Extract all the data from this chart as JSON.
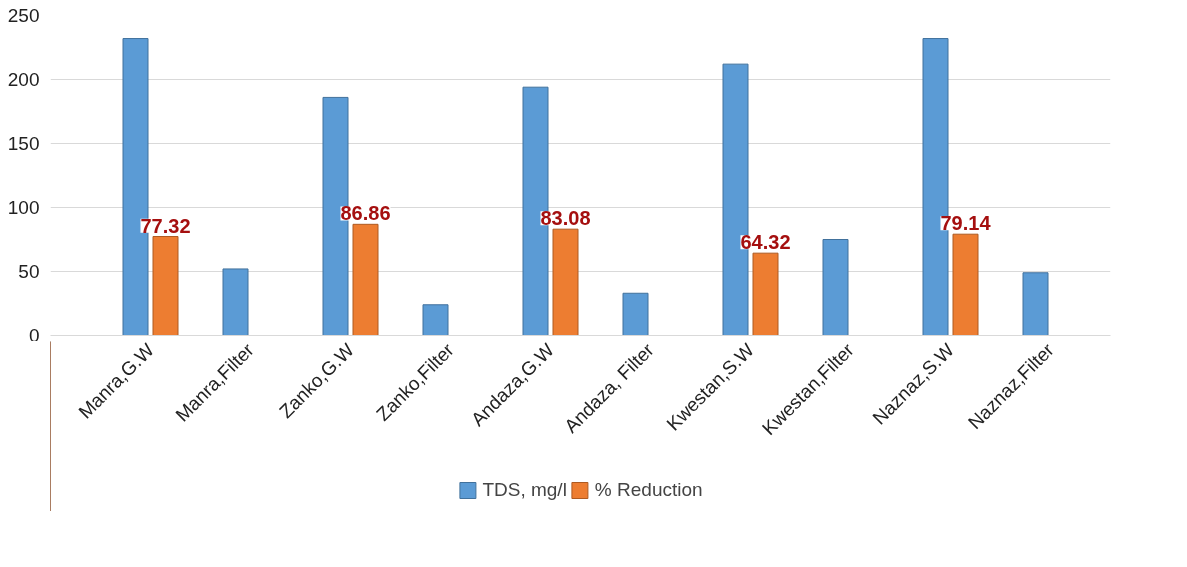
{
  "chart_data": {
    "type": "bar",
    "categories": [
      "Manra,G.W",
      "Manra,Filter",
      "Zanko,G.W",
      "Zanko,Filter",
      "Andaza,G.W",
      "Andaza, Filter",
      "Kwestan,S.W",
      "Kwestan,Filter",
      "Naznaz,S.W",
      "Naznaz,Filter"
    ],
    "series": [
      {
        "name": "TDS, mg/l",
        "color": "#5b9bd5",
        "values": [
          232,
          52,
          186,
          24,
          194,
          33,
          212,
          75,
          232,
          49
        ]
      },
      {
        "name": "% Reduction",
        "color": "#ed7d31",
        "values": [
          77.32,
          null,
          86.86,
          null,
          83.08,
          null,
          64.32,
          null,
          79.14,
          null
        ],
        "value_labels": [
          "77.32",
          null,
          "86.86",
          null,
          "83.08",
          null,
          "64.32",
          null,
          "79.14",
          null
        ]
      }
    ],
    "ylim": [
      0,
      250
    ],
    "yticks": [
      0,
      50,
      100,
      150,
      200,
      250
    ],
    "grid": "y",
    "legend": "bottom"
  }
}
